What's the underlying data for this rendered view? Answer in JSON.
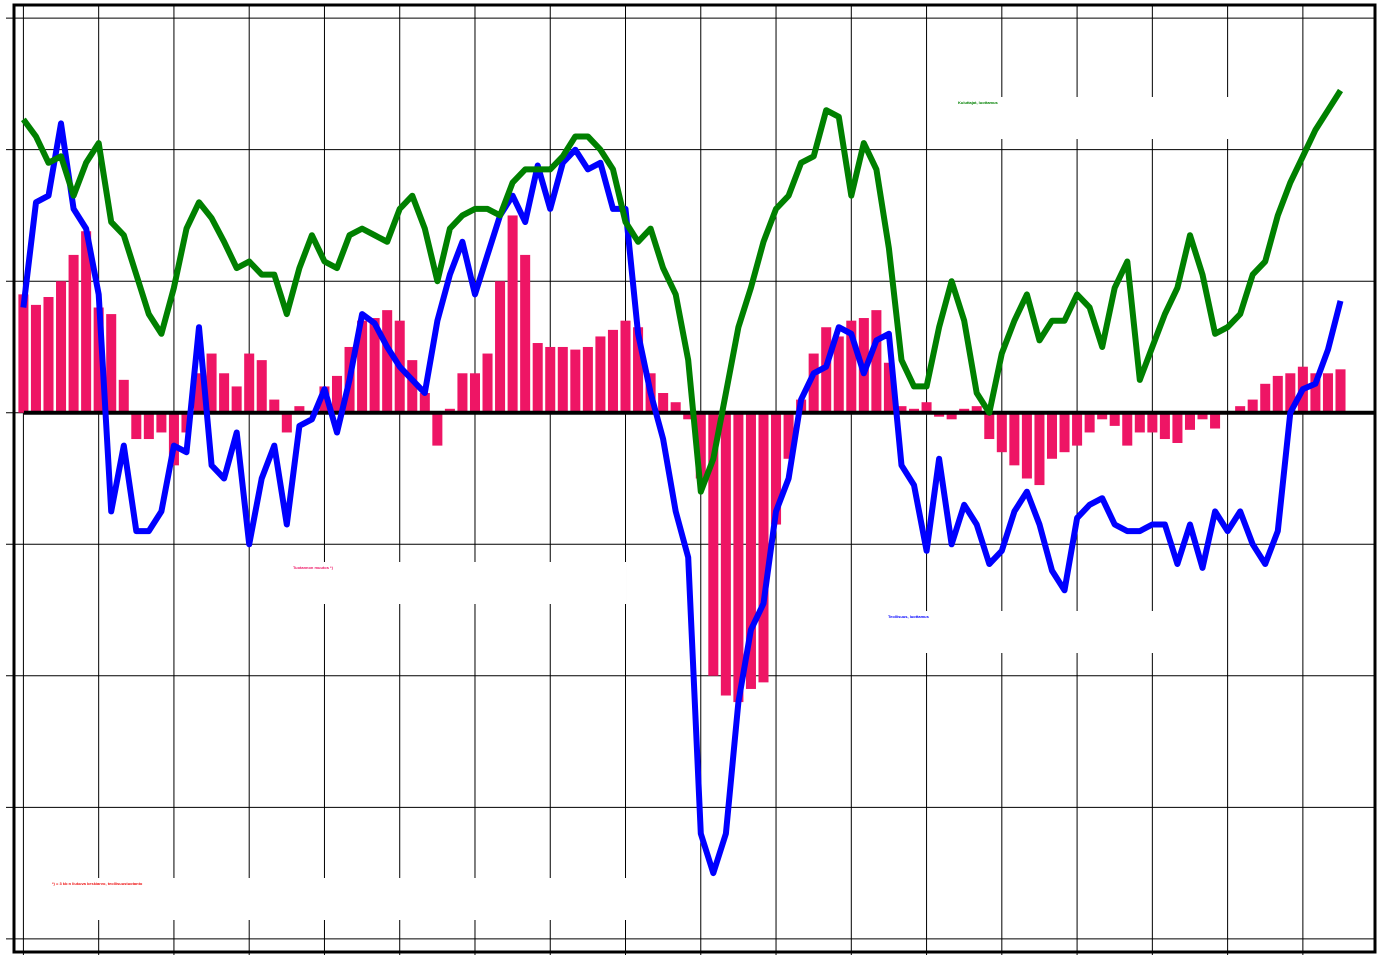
{
  "chart_data": {
    "type": "combo",
    "annotations": [
      "Kuluttajat, luottamus",
      "Tuotannon muutos  *)",
      "Teollisuus, luottamus",
      "*) = 3 kk:n liukuva keskiarvo, teollisuustuotanto"
    ],
    "x": [
      0,
      2,
      4,
      6,
      8,
      10,
      12,
      14,
      16,
      18,
      20,
      22,
      24,
      26,
      28,
      30,
      32,
      34,
      36,
      38,
      40,
      42,
      44,
      46,
      48,
      50,
      52,
      54,
      56,
      58,
      60,
      62,
      64,
      66,
      68,
      70,
      72,
      74,
      76,
      78,
      80,
      82,
      84,
      86,
      88,
      90,
      92,
      94,
      96,
      98,
      100,
      102,
      104,
      106,
      108,
      110,
      112,
      114,
      116,
      118,
      120,
      122,
      124,
      126,
      128,
      130,
      132,
      134,
      136,
      138,
      140,
      142,
      144,
      146,
      148,
      150,
      152,
      154,
      156,
      158,
      160,
      162,
      164,
      166,
      168,
      170,
      172,
      174,
      176,
      178,
      180,
      182,
      184,
      186,
      188,
      190,
      192,
      194,
      196,
      198,
      200,
      202,
      204,
      206,
      208,
      210
    ],
    "xlim": [
      -1.5,
      215.5
    ],
    "xticks": [
      0,
      12,
      24,
      36,
      48,
      60,
      72,
      84,
      96,
      108,
      120,
      132,
      144,
      156,
      168,
      180,
      192,
      204
    ],
    "ylim": [
      -41,
      31
    ],
    "yticks": [
      -40,
      -30,
      -20,
      -10,
      0,
      10,
      20,
      30
    ],
    "grid": true,
    "series": [
      {
        "name": "Tuotannon muutos",
        "type": "bar",
        "color": "#ee1565",
        "values": [
          9,
          8.2,
          8.8,
          10,
          12,
          13.8,
          8,
          7.5,
          2.5,
          -2,
          -2,
          -1.5,
          -4,
          -1.5,
          3,
          4.5,
          3,
          2,
          4.5,
          4,
          1,
          -1.5,
          0.5,
          0,
          2,
          2.8,
          5,
          7,
          7.2,
          7.8,
          7,
          4,
          1.5,
          -2.5,
          0.3,
          3,
          3,
          4.5,
          10,
          15,
          12,
          5.3,
          5,
          5,
          4.8,
          5,
          5.8,
          6.3,
          7,
          6.5,
          3,
          1.5,
          0.8,
          -0.5,
          -5,
          -20,
          -21.5,
          -22,
          -21,
          -20.5,
          -8.5,
          -3.5,
          1,
          4.5,
          6.5,
          5.8,
          7,
          7.2,
          7.8,
          3.8,
          0.5,
          0.3,
          0.8,
          -0.3,
          -0.5,
          0.3,
          0.5,
          -2,
          -3,
          -4,
          -5,
          -5.5,
          -3.5,
          -3,
          -2.5,
          -1.5,
          -0.5,
          -1,
          -2.5,
          -1.5,
          -1.5,
          -2,
          -2.3,
          -1.3,
          -0.5,
          -1.2,
          0,
          0.5,
          1,
          2.2,
          2.8,
          3,
          3.5,
          3,
          3,
          3.3
        ]
      },
      {
        "name": "Teollisuus, luottamus",
        "type": "line",
        "color": "#0000ff",
        "values": [
          8,
          16,
          16.5,
          22,
          15.5,
          14,
          9,
          -7.5,
          -2.5,
          -9,
          -9,
          -7.5,
          -2.5,
          -3,
          6.5,
          -4,
          -5,
          -1.5,
          -10,
          -5,
          -2.5,
          -8.5,
          -1,
          -0.5,
          1.8,
          -1.5,
          2.5,
          7.5,
          6.8,
          5,
          3.5,
          2.5,
          1.5,
          7,
          10.5,
          13,
          9,
          12,
          15,
          16.5,
          14.5,
          18.8,
          15.5,
          19,
          20,
          18.5,
          19,
          15.5,
          15.5,
          6,
          1.5,
          -2,
          -7.5,
          -11,
          -32,
          -35,
          -32,
          -22,
          -16.5,
          -14.5,
          -7.5,
          -5,
          1,
          3,
          3.5,
          6.5,
          6,
          3,
          5.5,
          6,
          -4,
          -5.5,
          -10.5,
          -3.5,
          -10,
          -7,
          -8.5,
          -11.5,
          -10.5,
          -7.5,
          -6,
          -8.5,
          -12,
          -13.5,
          -8,
          -7,
          -6.5,
          -8.5,
          -9,
          -9,
          -8.5,
          -8.5,
          -11.5,
          -8.5,
          -11.8,
          -7.5,
          -9,
          -7.5,
          -10,
          -11.5,
          -9,
          0,
          1.8,
          2.2,
          4.8,
          8.5
        ]
      },
      {
        "name": "Kuluttajat, luottamus",
        "type": "line",
        "color": "#008000",
        "values": [
          22.3,
          21,
          19,
          19.5,
          16.5,
          19,
          20.5,
          14.5,
          13.5,
          10.5,
          7.5,
          6,
          9.5,
          14,
          16,
          14.8,
          13,
          11,
          11.5,
          10.5,
          10.5,
          7.5,
          11,
          13.5,
          11.5,
          11,
          13.5,
          14,
          13.5,
          13,
          15.5,
          16.5,
          14,
          10,
          14,
          15,
          15.5,
          15.5,
          15,
          17.5,
          18.5,
          18.5,
          18.5,
          19.5,
          21,
          21,
          20,
          18.5,
          14.5,
          13,
          14,
          11,
          9,
          4,
          -6,
          -3.5,
          1.5,
          6.5,
          9.5,
          13,
          15.5,
          16.5,
          19,
          19.5,
          23,
          22.5,
          16.5,
          20.5,
          18.5,
          12.5,
          4,
          2,
          2,
          6.5,
          10,
          7,
          1.5,
          0,
          4.5,
          7,
          9,
          5.5,
          7,
          7,
          9,
          8,
          5,
          9.5,
          11.5,
          2.5,
          5,
          7.5,
          9.5,
          13.5,
          10.5,
          6,
          6.5,
          7.5,
          10.5,
          11.5,
          15,
          17.5,
          19.5,
          21.5,
          23,
          24.5
        ]
      }
    ]
  }
}
